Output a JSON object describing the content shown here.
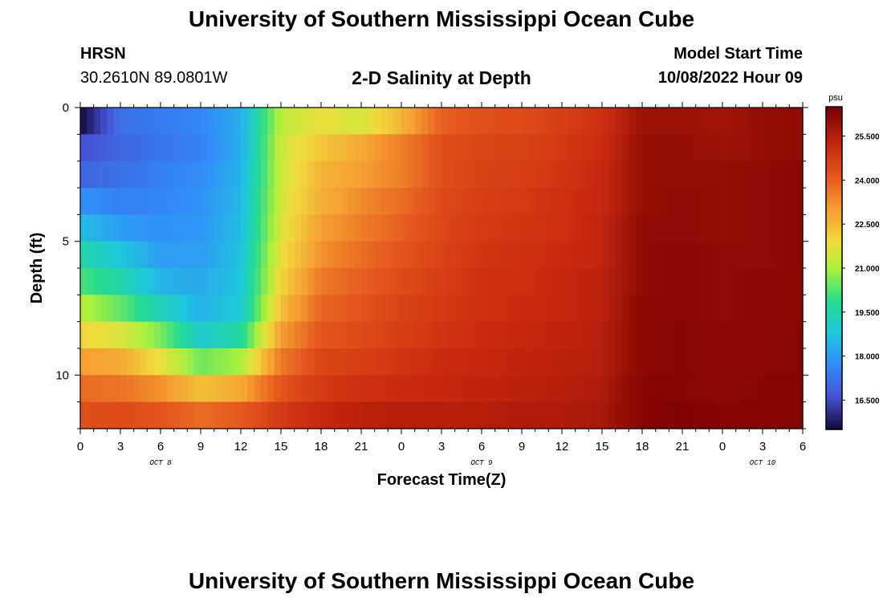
{
  "header": {
    "title": "University of Southern Mississippi Ocean Cube",
    "station": "HRSN",
    "coords": "30.2610N  89.0801W",
    "subtitle": "2-D Salinity at Depth",
    "model_label": "Model Start Time",
    "model_time": "10/08/2022 Hour 09"
  },
  "footer": {
    "title": "University of Southern Mississippi Ocean Cube"
  },
  "chart_data": {
    "type": "heatmap",
    "title": "2-D Salinity at Depth",
    "xlabel": "Forecast Time(Z)",
    "ylabel": "Depth (ft)",
    "x_tick_labels": [
      "0",
      "3",
      "6",
      "9",
      "12",
      "15",
      "18",
      "21",
      "0",
      "3",
      "6",
      "9",
      "12",
      "15",
      "18",
      "21",
      "0",
      "3",
      "6"
    ],
    "date_labels": [
      {
        "label": "OCT 8",
        "hours_from_start": 6
      },
      {
        "label": "OCT 9",
        "hours_from_start": 30
      },
      {
        "label": "OCT 10",
        "hours_from_start": 51
      }
    ],
    "xlim_hours": [
      0,
      54
    ],
    "y_tick_labels": [
      "0",
      "5",
      "10"
    ],
    "ylim_ft": [
      0,
      12
    ],
    "colorbar": {
      "unit": "psu",
      "min": 15.5,
      "max": 26.5,
      "tick_labels": [
        "16.500",
        "18.000",
        "19.500",
        "21.000",
        "22.500",
        "24.000",
        "25.500"
      ],
      "tick_values": [
        16.5,
        18.0,
        19.5,
        21.0,
        22.5,
        24.0,
        25.5
      ]
    },
    "depth_levels_ft": [
      0.5,
      1.5,
      2.5,
      3.5,
      4.5,
      5.5,
      6.5,
      7.5,
      8.5,
      9.5,
      10.5,
      11.5
    ],
    "time_columns_hours": [
      0,
      3,
      6,
      9,
      12,
      15,
      18,
      21,
      24,
      27,
      30,
      33,
      36,
      39,
      42,
      45,
      48,
      51,
      54
    ],
    "salinity_psu": [
      [
        15.5,
        17.2,
        17.4,
        17.6,
        18.3,
        21.2,
        21.8,
        21.5,
        22.6,
        24.0,
        24.3,
        24.4,
        24.7,
        25.0,
        25.9,
        25.9,
        25.8,
        26.0,
        26.1
      ],
      [
        16.6,
        17.0,
        17.3,
        17.5,
        18.3,
        21.4,
        22.3,
        22.8,
        23.5,
        24.3,
        24.5,
        24.6,
        24.8,
        25.1,
        26.0,
        26.0,
        25.9,
        26.0,
        26.1
      ],
      [
        17.0,
        17.2,
        17.5,
        17.7,
        18.4,
        21.4,
        22.6,
        23.0,
        23.5,
        24.3,
        24.6,
        24.7,
        24.9,
        25.2,
        26.0,
        26.0,
        26.0,
        26.1,
        26.2
      ],
      [
        17.8,
        17.5,
        17.6,
        17.8,
        18.5,
        21.5,
        22.7,
        23.3,
        23.8,
        24.4,
        24.7,
        24.8,
        25.0,
        25.2,
        26.0,
        26.1,
        26.0,
        26.1,
        26.2
      ],
      [
        18.6,
        18.0,
        17.8,
        17.9,
        18.6,
        21.6,
        23.0,
        23.5,
        24.0,
        24.5,
        24.8,
        24.9,
        25.0,
        25.3,
        26.1,
        26.1,
        26.0,
        26.1,
        26.2
      ],
      [
        19.5,
        18.8,
        18.0,
        18.0,
        18.7,
        21.8,
        23.2,
        23.8,
        24.2,
        24.6,
        24.9,
        25.0,
        25.1,
        25.3,
        26.1,
        26.2,
        26.1,
        26.1,
        26.2
      ],
      [
        20.2,
        19.5,
        18.4,
        18.2,
        18.8,
        22.0,
        23.6,
        24.0,
        24.4,
        24.7,
        25.0,
        25.0,
        25.2,
        25.4,
        26.1,
        26.2,
        26.1,
        26.2,
        26.2
      ],
      [
        21.2,
        20.4,
        19.3,
        18.4,
        18.9,
        22.4,
        23.9,
        24.2,
        24.6,
        24.8,
        25.0,
        25.1,
        25.2,
        25.4,
        26.2,
        26.2,
        26.1,
        26.2,
        26.2
      ],
      [
        22.0,
        21.6,
        20.6,
        19.0,
        19.6,
        23.0,
        24.2,
        24.4,
        24.7,
        24.9,
        25.1,
        25.2,
        25.3,
        25.5,
        26.2,
        26.3,
        26.2,
        26.2,
        26.3
      ],
      [
        23.0,
        22.8,
        21.8,
        20.5,
        21.0,
        23.6,
        24.5,
        24.7,
        24.9,
        25.1,
        25.2,
        25.3,
        25.4,
        25.5,
        26.2,
        26.3,
        26.2,
        26.2,
        26.3
      ],
      [
        23.8,
        23.7,
        23.2,
        22.4,
        22.8,
        24.2,
        24.8,
        25.0,
        25.1,
        25.2,
        25.3,
        25.4,
        25.5,
        25.6,
        26.3,
        26.3,
        26.2,
        26.3,
        26.3
      ],
      [
        24.3,
        24.4,
        24.2,
        23.8,
        24.1,
        24.8,
        25.2,
        25.4,
        25.5,
        25.5,
        25.5,
        25.6,
        25.6,
        25.7,
        26.3,
        26.4,
        26.3,
        26.3,
        26.3
      ]
    ]
  }
}
